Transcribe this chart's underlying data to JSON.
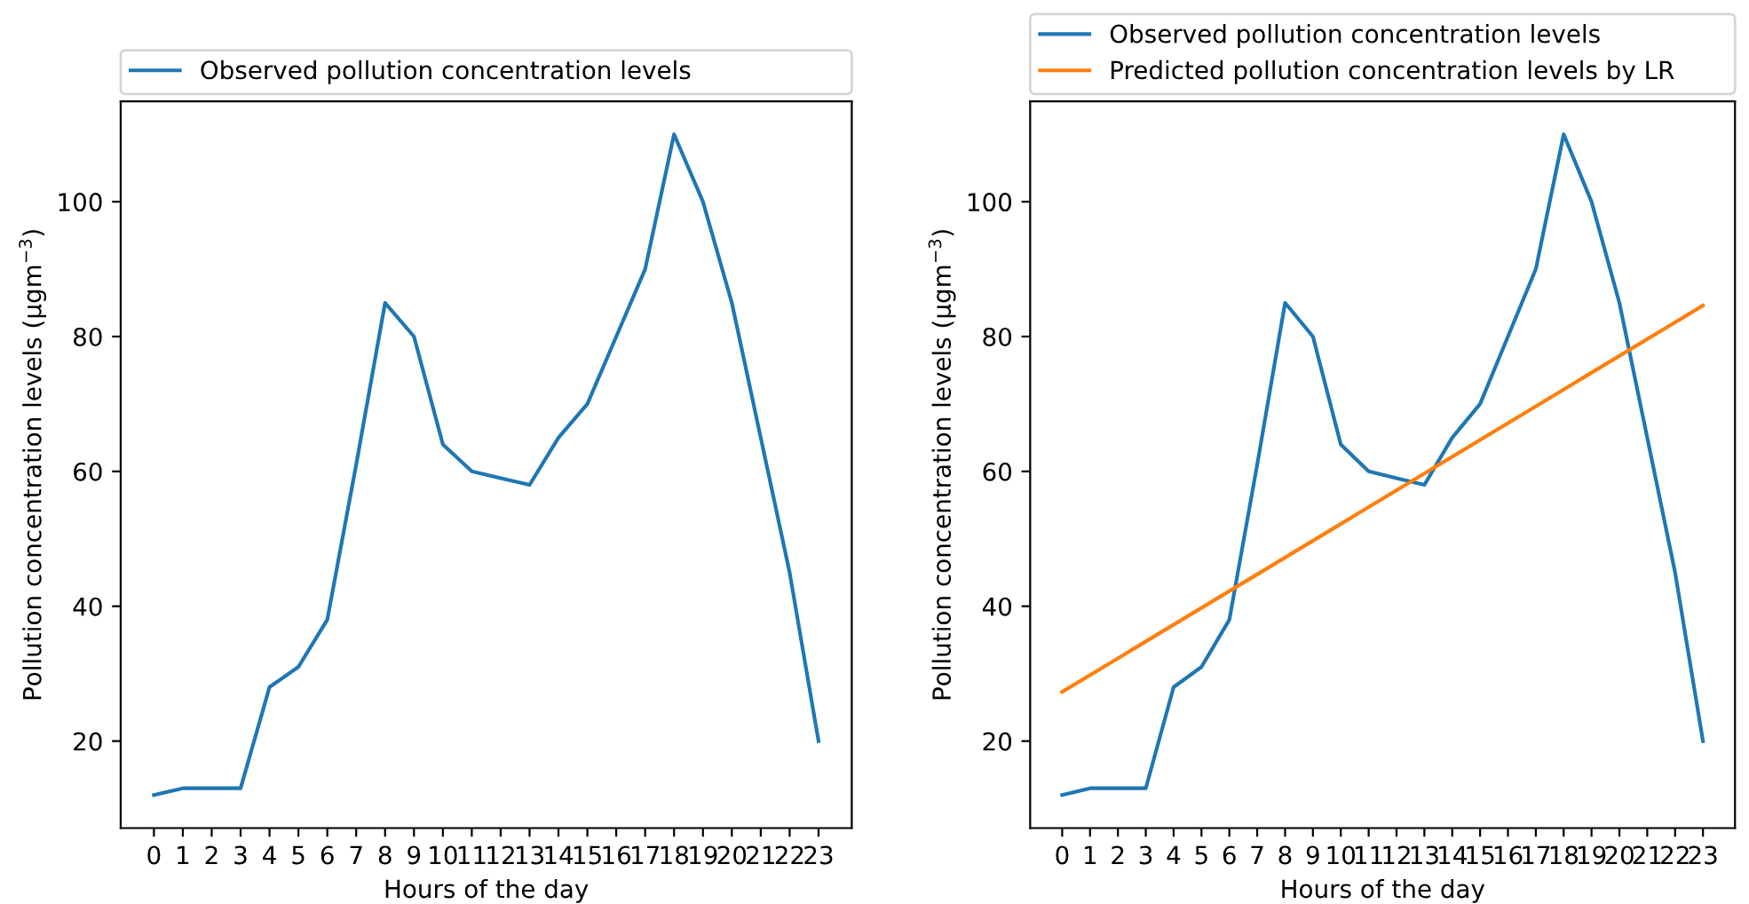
{
  "chart_data": [
    {
      "type": "line",
      "xlabel": "Hours of the day",
      "ylabel": "Pollution concentration levels (μgm$^{−3}$)",
      "x": [
        0,
        1,
        2,
        3,
        4,
        5,
        6,
        7,
        8,
        9,
        10,
        11,
        12,
        13,
        14,
        15,
        16,
        17,
        18,
        19,
        20,
        21,
        22,
        23
      ],
      "series": [
        {
          "name": "Observed pollution concentration levels",
          "color": "#1f77b4",
          "values": [
            12,
            13,
            13,
            13,
            28,
            31,
            38,
            61,
            85,
            80,
            64,
            60,
            59,
            58,
            65,
            70,
            80,
            90,
            110,
            100,
            85,
            65,
            45,
            20
          ]
        }
      ],
      "xlim": [
        -1.15,
        24.15
      ],
      "xticks": [
        0,
        1,
        2,
        3,
        4,
        5,
        6,
        7,
        8,
        9,
        10,
        11,
        12,
        13,
        14,
        15,
        16,
        17,
        18,
        19,
        20,
        21,
        22,
        23
      ],
      "ylim": [
        7.1,
        114.9
      ],
      "yticks": [
        20,
        40,
        60,
        80,
        100
      ],
      "legend": "top",
      "grid": false
    },
    {
      "type": "line",
      "xlabel": "Hours of the day",
      "ylabel": "Pollution concentration levels (μgm$^{−3}$)",
      "x": [
        0,
        1,
        2,
        3,
        4,
        5,
        6,
        7,
        8,
        9,
        10,
        11,
        12,
        13,
        14,
        15,
        16,
        17,
        18,
        19,
        20,
        21,
        22,
        23
      ],
      "series": [
        {
          "name": "Observed pollution concentration levels",
          "color": "#1f77b4",
          "values": [
            12,
            13,
            13,
            13,
            28,
            31,
            38,
            61,
            85,
            80,
            64,
            60,
            59,
            58,
            65,
            70,
            80,
            90,
            110,
            100,
            85,
            65,
            45,
            20
          ]
        },
        {
          "name": "Predicted pollution concentration levels by LR",
          "color": "#ff7f0e",
          "x": [
            0,
            23
          ],
          "values": [
            27.3,
            84.6
          ]
        }
      ],
      "xlim": [
        -1.15,
        24.15
      ],
      "xticks": [
        0,
        1,
        2,
        3,
        4,
        5,
        6,
        7,
        8,
        9,
        10,
        11,
        12,
        13,
        14,
        15,
        16,
        17,
        18,
        19,
        20,
        21,
        22,
        23
      ],
      "ylim": [
        7.1,
        114.9
      ],
      "yticks": [
        20,
        40,
        60,
        80,
        100
      ],
      "legend": "top",
      "grid": false
    }
  ]
}
